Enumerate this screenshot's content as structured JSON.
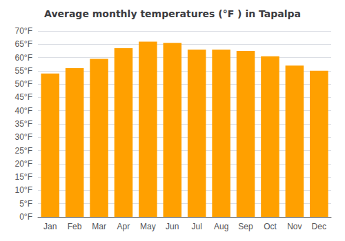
{
  "chart_data": {
    "type": "bar",
    "title": "Average monthly temperatures (°F ) in Tapalpa",
    "categories": [
      "Jan",
      "Feb",
      "Mar",
      "Apr",
      "May",
      "Jun",
      "Jul",
      "Aug",
      "Sep",
      "Oct",
      "Nov",
      "Dec"
    ],
    "values": [
      54,
      56,
      59.5,
      63.5,
      66,
      65.5,
      63,
      63,
      62.5,
      60.5,
      57,
      55
    ],
    "color": "#FFA000",
    "ylim": [
      0,
      70
    ],
    "yticks": [
      {
        "value": 0,
        "label": "0°F"
      },
      {
        "value": 5,
        "label": "5°F"
      },
      {
        "value": 10,
        "label": "10°F"
      },
      {
        "value": 15,
        "label": "15°F"
      },
      {
        "value": 20,
        "label": "20°F"
      },
      {
        "value": 25,
        "label": "25°F"
      },
      {
        "value": 30,
        "label": "30°F"
      },
      {
        "value": 35,
        "label": "35°F"
      },
      {
        "value": 40,
        "label": "40°F"
      },
      {
        "value": 45,
        "label": "45°F"
      },
      {
        "value": 50,
        "label": "50°F"
      },
      {
        "value": 55,
        "label": "55°F"
      },
      {
        "value": 60,
        "label": "60°F"
      },
      {
        "value": 65,
        "label": "65°F"
      },
      {
        "value": 70,
        "label": "70°F"
      }
    ],
    "grid": true
  }
}
